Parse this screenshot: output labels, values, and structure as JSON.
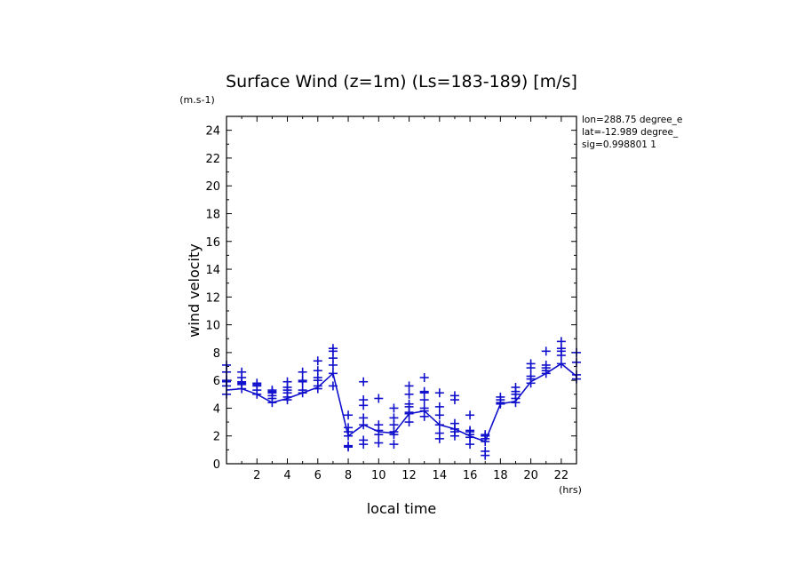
{
  "chart_data": {
    "type": "scatter",
    "title": "Surface Wind (z=1m) (Ls=183-189) [m/s]",
    "xlabel": "local time",
    "ylabel": "wind velocity",
    "y_unit": "(m.s-1)",
    "x_unit": "(hrs)",
    "xlim": [
      0,
      23
    ],
    "ylim": [
      0,
      25
    ],
    "x_ticks": [
      2,
      4,
      6,
      8,
      10,
      12,
      14,
      16,
      18,
      20,
      22
    ],
    "y_ticks": [
      0,
      2,
      4,
      6,
      8,
      10,
      12,
      14,
      16,
      18,
      20,
      22,
      24
    ],
    "info_lines": [
      "lon=288.75 degree_e",
      "lat=-12.989 degree_",
      "sig=0.998801 1"
    ],
    "line_color": "#1010cc",
    "series": [
      {
        "kind": "mean-line",
        "x": [
          0,
          1,
          2,
          3,
          4,
          5,
          6,
          7,
          8,
          9,
          10,
          11,
          12,
          13,
          14,
          15,
          16,
          17,
          18,
          19,
          20,
          21,
          22,
          23
        ],
        "y": [
          5.3,
          5.4,
          5.0,
          4.4,
          4.7,
          5.1,
          5.5,
          6.5,
          2.0,
          2.8,
          2.3,
          2.2,
          3.6,
          3.8,
          2.8,
          2.5,
          2.0,
          1.6,
          4.3,
          4.5,
          5.9,
          6.5,
          7.2,
          6.3
        ]
      },
      {
        "kind": "daily-samples",
        "x": [
          0,
          1,
          2,
          3,
          4,
          5,
          6,
          7,
          8,
          9,
          10,
          11,
          12,
          13,
          14,
          15,
          16,
          17,
          18,
          19,
          20,
          21,
          22,
          23
        ],
        "y": [
          [
            5.0,
            5.6,
            5.9,
            6.0,
            6.6,
            7.1
          ],
          [
            5.4,
            5.7,
            5.8,
            5.9,
            6.2,
            6.6
          ],
          [
            5.0,
            5.3,
            5.6,
            5.7,
            5.8
          ],
          [
            4.4,
            4.7,
            4.9,
            5.1,
            5.2,
            5.3
          ],
          [
            4.6,
            4.8,
            5.1,
            5.3,
            5.5,
            5.9
          ],
          [
            5.1,
            5.3,
            5.9,
            6.0,
            6.6
          ],
          [
            5.4,
            5.6,
            6.0,
            6.2,
            6.7,
            7.4
          ],
          [
            5.6,
            6.5,
            7.1,
            7.6,
            8.1,
            8.3
          ],
          [
            1.2,
            1.3,
            2.0,
            2.3,
            2.6,
            3.5
          ],
          [
            1.4,
            1.7,
            2.8,
            3.3,
            4.2,
            4.6,
            5.9
          ],
          [
            1.5,
            2.1,
            2.4,
            2.8,
            4.7
          ],
          [
            1.4,
            2.1,
            2.3,
            2.8,
            3.3,
            4.0
          ],
          [
            3.0,
            3.6,
            3.7,
            4.1,
            4.3,
            5.0,
            5.6
          ],
          [
            3.4,
            3.8,
            4.0,
            4.6,
            5.1,
            5.2,
            6.2
          ],
          [
            1.8,
            2.2,
            2.8,
            3.5,
            4.1,
            5.1
          ],
          [
            2.0,
            2.3,
            2.5,
            2.9,
            4.6,
            4.9
          ],
          [
            1.4,
            1.9,
            2.1,
            2.3,
            2.4,
            3.5
          ],
          [
            0.6,
            0.9,
            1.6,
            1.8,
            2.0,
            2.1
          ],
          [
            4.3,
            4.4,
            4.6,
            4.8
          ],
          [
            4.4,
            4.7,
            5.0,
            5.2,
            5.5
          ],
          [
            5.8,
            6.1,
            6.3,
            6.9,
            7.2
          ],
          [
            6.5,
            6.7,
            6.9,
            7.1,
            8.1
          ],
          [
            7.2,
            7.8,
            8.1,
            8.3,
            8.8
          ],
          [
            6.1,
            6.4,
            7.3,
            8.0
          ]
        ]
      }
    ]
  }
}
